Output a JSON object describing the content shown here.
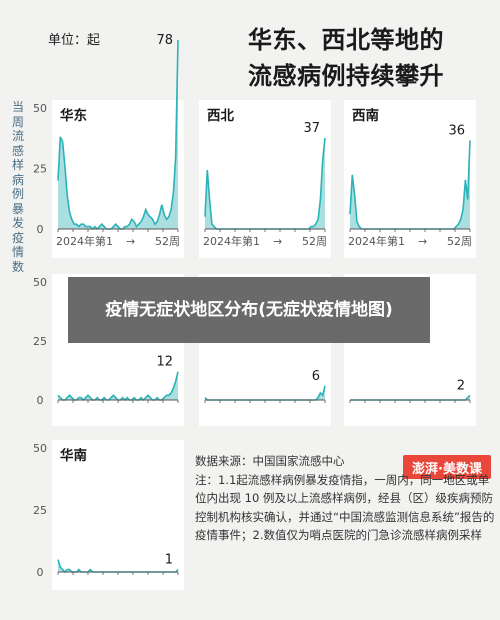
{
  "header": {
    "unit_label": "单位：起",
    "title_line1": "华东、西北等地的",
    "title_line2": "流感病例持续攀升"
  },
  "ylabel": "当周流感样病例暴发疫情数",
  "banner": {
    "text": "疫情无症状地区分布(无症状疫情地图)"
  },
  "notes": {
    "source": "数据来源：中国国家流感中心",
    "note": "注：1.1起流感样病例暴发疫情指，一周内，同一地区或单位内出现 10 例及以上流感样病例，经县（区）级疾病预防控制机构核实确认，并通过“中国流感监测信息系统”报告的疫情事件；2.数值仅为哨点医院的门急诊流感样病例采样"
  },
  "logo": {
    "text": "澎湃·美数课"
  },
  "colors": {
    "fill": "#8fd3d6",
    "stroke": "#2bb3b8",
    "axis": "#555555",
    "grid": "#cfcfcf"
  },
  "chart_data": [
    {
      "type": "area",
      "region": "华东",
      "peak_label": "78",
      "x_start": "2024年第1",
      "x_end": "52周",
      "y_ticks": [
        0,
        25,
        50
      ],
      "ylim": [
        0,
        78
      ],
      "values": [
        20,
        38,
        36,
        26,
        14,
        7,
        4,
        2,
        2,
        1,
        2,
        2,
        1,
        1,
        1,
        0,
        1,
        0,
        1,
        2,
        1,
        0,
        0,
        0,
        1,
        2,
        1,
        0,
        0,
        1,
        1,
        2,
        4,
        3,
        1,
        2,
        3,
        5,
        8,
        6,
        5,
        4,
        2,
        3,
        6,
        10,
        6,
        4,
        5,
        8,
        15,
        30,
        78
      ]
    },
    {
      "type": "area",
      "region": "西北",
      "peak_label": "37",
      "x_start": "2024年第1",
      "x_end": "52周",
      "y_ticks": [
        0,
        25,
        50
      ],
      "ylim": [
        0,
        78
      ],
      "values": [
        5,
        24,
        12,
        2,
        1,
        0,
        0,
        0,
        0,
        0,
        0,
        0,
        0,
        0,
        0,
        0,
        0,
        0,
        0,
        0,
        0,
        0,
        0,
        0,
        0,
        0,
        0,
        0,
        0,
        0,
        0,
        0,
        0,
        0,
        0,
        0,
        0,
        0,
        0,
        0,
        0,
        0,
        0,
        0,
        0,
        0,
        1,
        1,
        2,
        4,
        12,
        28,
        37
      ]
    },
    {
      "type": "area",
      "region": "西南",
      "peak_label": "36",
      "x_start": "2024年第1",
      "x_end": "52周",
      "y_ticks": [
        0,
        25,
        50
      ],
      "ylim": [
        0,
        78
      ],
      "values": [
        6,
        22,
        14,
        3,
        1,
        0,
        0,
        0,
        0,
        0,
        0,
        0,
        0,
        0,
        0,
        0,
        0,
        0,
        0,
        0,
        0,
        0,
        0,
        0,
        0,
        0,
        0,
        0,
        0,
        0,
        0,
        0,
        0,
        0,
        0,
        0,
        0,
        0,
        0,
        0,
        0,
        0,
        0,
        0,
        0,
        0,
        1,
        2,
        4,
        8,
        20,
        12,
        36
      ]
    },
    {
      "type": "area",
      "region": "",
      "peak_label": "12",
      "y_ticks": [
        0,
        25,
        50
      ],
      "ylim": [
        0,
        78
      ],
      "values": [
        2,
        1,
        0,
        0,
        1,
        2,
        1,
        0,
        0,
        1,
        1,
        0,
        1,
        2,
        1,
        0,
        0,
        1,
        0,
        0,
        1,
        0,
        0,
        1,
        2,
        1,
        0,
        0,
        1,
        0,
        1,
        0,
        0,
        1,
        0,
        0,
        1,
        0,
        1,
        2,
        1,
        0,
        0,
        1,
        0,
        0,
        1,
        2,
        2,
        3,
        5,
        8,
        12
      ]
    },
    {
      "type": "area",
      "region": "",
      "peak_label": "6",
      "y_ticks": [
        0,
        25,
        50
      ],
      "ylim": [
        0,
        78
      ],
      "values": [
        1,
        0,
        0,
        0,
        0,
        0,
        0,
        0,
        0,
        0,
        0,
        0,
        0,
        0,
        0,
        0,
        0,
        0,
        0,
        0,
        0,
        0,
        0,
        0,
        0,
        0,
        0,
        0,
        0,
        0,
        0,
        0,
        0,
        0,
        0,
        0,
        0,
        0,
        0,
        0,
        0,
        0,
        0,
        0,
        0,
        0,
        0,
        0,
        0,
        1,
        3,
        2,
        6
      ]
    },
    {
      "type": "area",
      "region": "",
      "peak_label": "2",
      "y_ticks": [
        0,
        25,
        50
      ],
      "ylim": [
        0,
        78
      ],
      "values": [
        0,
        0,
        0,
        0,
        0,
        0,
        0,
        0,
        0,
        0,
        0,
        0,
        0,
        0,
        0,
        0,
        0,
        0,
        0,
        0,
        0,
        0,
        0,
        0,
        0,
        0,
        0,
        0,
        0,
        0,
        0,
        0,
        0,
        0,
        0,
        0,
        0,
        0,
        0,
        0,
        0,
        0,
        0,
        0,
        0,
        0,
        0,
        0,
        0,
        0,
        0,
        1,
        2
      ]
    },
    {
      "type": "area",
      "region": "华南",
      "peak_label": "1",
      "y_ticks": [
        0,
        25,
        50
      ],
      "ylim": [
        0,
        78
      ],
      "values": [
        5,
        2,
        1,
        0,
        1,
        1,
        0,
        0,
        0,
        1,
        0,
        0,
        0,
        0,
        1,
        0,
        0,
        0,
        0,
        0,
        0,
        0,
        0,
        0,
        0,
        0,
        0,
        0,
        0,
        0,
        0,
        0,
        0,
        0,
        0,
        0,
        0,
        0,
        0,
        0,
        0,
        0,
        0,
        0,
        0,
        0,
        0,
        0,
        0,
        0,
        0,
        0,
        1
      ]
    }
  ]
}
